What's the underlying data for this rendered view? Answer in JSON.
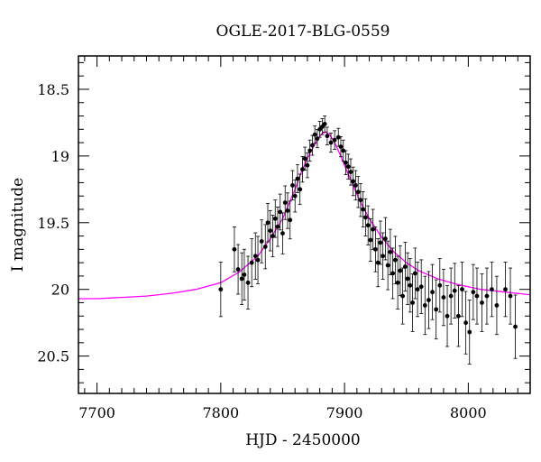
{
  "chart_data": {
    "type": "scatter",
    "title": "OGLE-2017-BLG-0559",
    "xlabel": "HJD - 2450000",
    "ylabel": "I magnitude",
    "xlim": [
      7685,
      8050
    ],
    "ylim": [
      20.78,
      18.25
    ],
    "y_inverted": true,
    "x_ticks": [
      7700,
      7800,
      7900,
      8000
    ],
    "x_tick_labels": [
      "7700",
      "7800",
      "7900",
      "8000"
    ],
    "y_ticks": [
      18.5,
      19,
      19.5,
      20,
      20.5
    ],
    "y_tick_labels": [
      "18.5",
      "19",
      "19.5",
      "20",
      "20.5"
    ],
    "grid": false,
    "colors": {
      "model": "#ff00ff",
      "points": "#000000",
      "axes": "#000000"
    },
    "model": {
      "name": "",
      "x": [
        7685,
        7700,
        7720,
        7740,
        7760,
        7780,
        7800,
        7815,
        7830,
        7840,
        7850,
        7860,
        7866,
        7872,
        7878,
        7882,
        7885,
        7888,
        7892,
        7896,
        7900,
        7906,
        7912,
        7920,
        7930,
        7940,
        7950,
        7960,
        7975,
        7990,
        8010,
        8030,
        8050
      ],
      "y": [
        20.07,
        20.07,
        20.06,
        20.05,
        20.03,
        20.0,
        19.95,
        19.87,
        19.75,
        19.62,
        19.47,
        19.25,
        19.1,
        18.98,
        18.88,
        18.83,
        18.82,
        18.84,
        18.9,
        18.98,
        19.07,
        19.2,
        19.33,
        19.47,
        19.61,
        19.72,
        19.8,
        19.86,
        19.92,
        19.96,
        20.0,
        20.02,
        20.04
      ]
    },
    "series": [
      {
        "x": [
          7800,
          7811,
          7814,
          7817,
          7819,
          7822,
          7825,
          7828,
          7830,
          7833,
          7836,
          7838,
          7840,
          7842,
          7844,
          7846,
          7848,
          7850,
          7852,
          7854,
          7856,
          7858,
          7860,
          7862,
          7864,
          7866,
          7868,
          7870,
          7872,
          7874,
          7876,
          7878,
          7880,
          7882,
          7884,
          7886,
          7889,
          7892,
          7895,
          7897,
          7899,
          7901,
          7903,
          7905,
          7907,
          7909,
          7911,
          7913,
          7915,
          7917,
          7919,
          7921,
          7923,
          7925,
          7927,
          7929,
          7931,
          7933,
          7935,
          7937,
          7939,
          7941,
          7943,
          7945,
          7947,
          7949,
          7951,
          7953,
          7955,
          7957,
          7959,
          7962,
          7965,
          7968,
          7971,
          7974,
          7977,
          7980,
          7983,
          7986,
          7989,
          7992,
          7995,
          7998,
          8001,
          8004,
          8007,
          8011,
          8015,
          8019,
          8023,
          8030,
          8034,
          8038
        ],
        "y": [
          20.0,
          19.7,
          19.85,
          19.92,
          19.89,
          19.95,
          19.8,
          19.75,
          19.78,
          19.64,
          19.68,
          19.5,
          19.56,
          19.6,
          19.47,
          19.53,
          19.42,
          19.58,
          19.35,
          19.41,
          19.48,
          19.22,
          19.3,
          19.17,
          19.25,
          19.1,
          19.02,
          19.07,
          18.96,
          18.92,
          18.84,
          18.87,
          18.8,
          18.78,
          18.76,
          18.85,
          18.9,
          18.88,
          18.86,
          18.93,
          18.96,
          19.05,
          19.08,
          19.12,
          19.19,
          19.22,
          19.27,
          19.33,
          19.4,
          19.46,
          19.52,
          19.63,
          19.55,
          19.7,
          19.8,
          19.65,
          19.75,
          19.62,
          19.82,
          19.72,
          19.88,
          19.78,
          19.95,
          19.86,
          20.05,
          19.83,
          19.92,
          19.97,
          20.1,
          19.88,
          20.0,
          19.98,
          20.12,
          20.08,
          20.02,
          20.15,
          19.97,
          20.06,
          20.2,
          20.05,
          20.01,
          20.2,
          20.0,
          20.25,
          20.32,
          20.02,
          20.05,
          20.1,
          20.05,
          20.0,
          20.12,
          20.0,
          20.05,
          20.28
        ]
      }
    ]
  }
}
